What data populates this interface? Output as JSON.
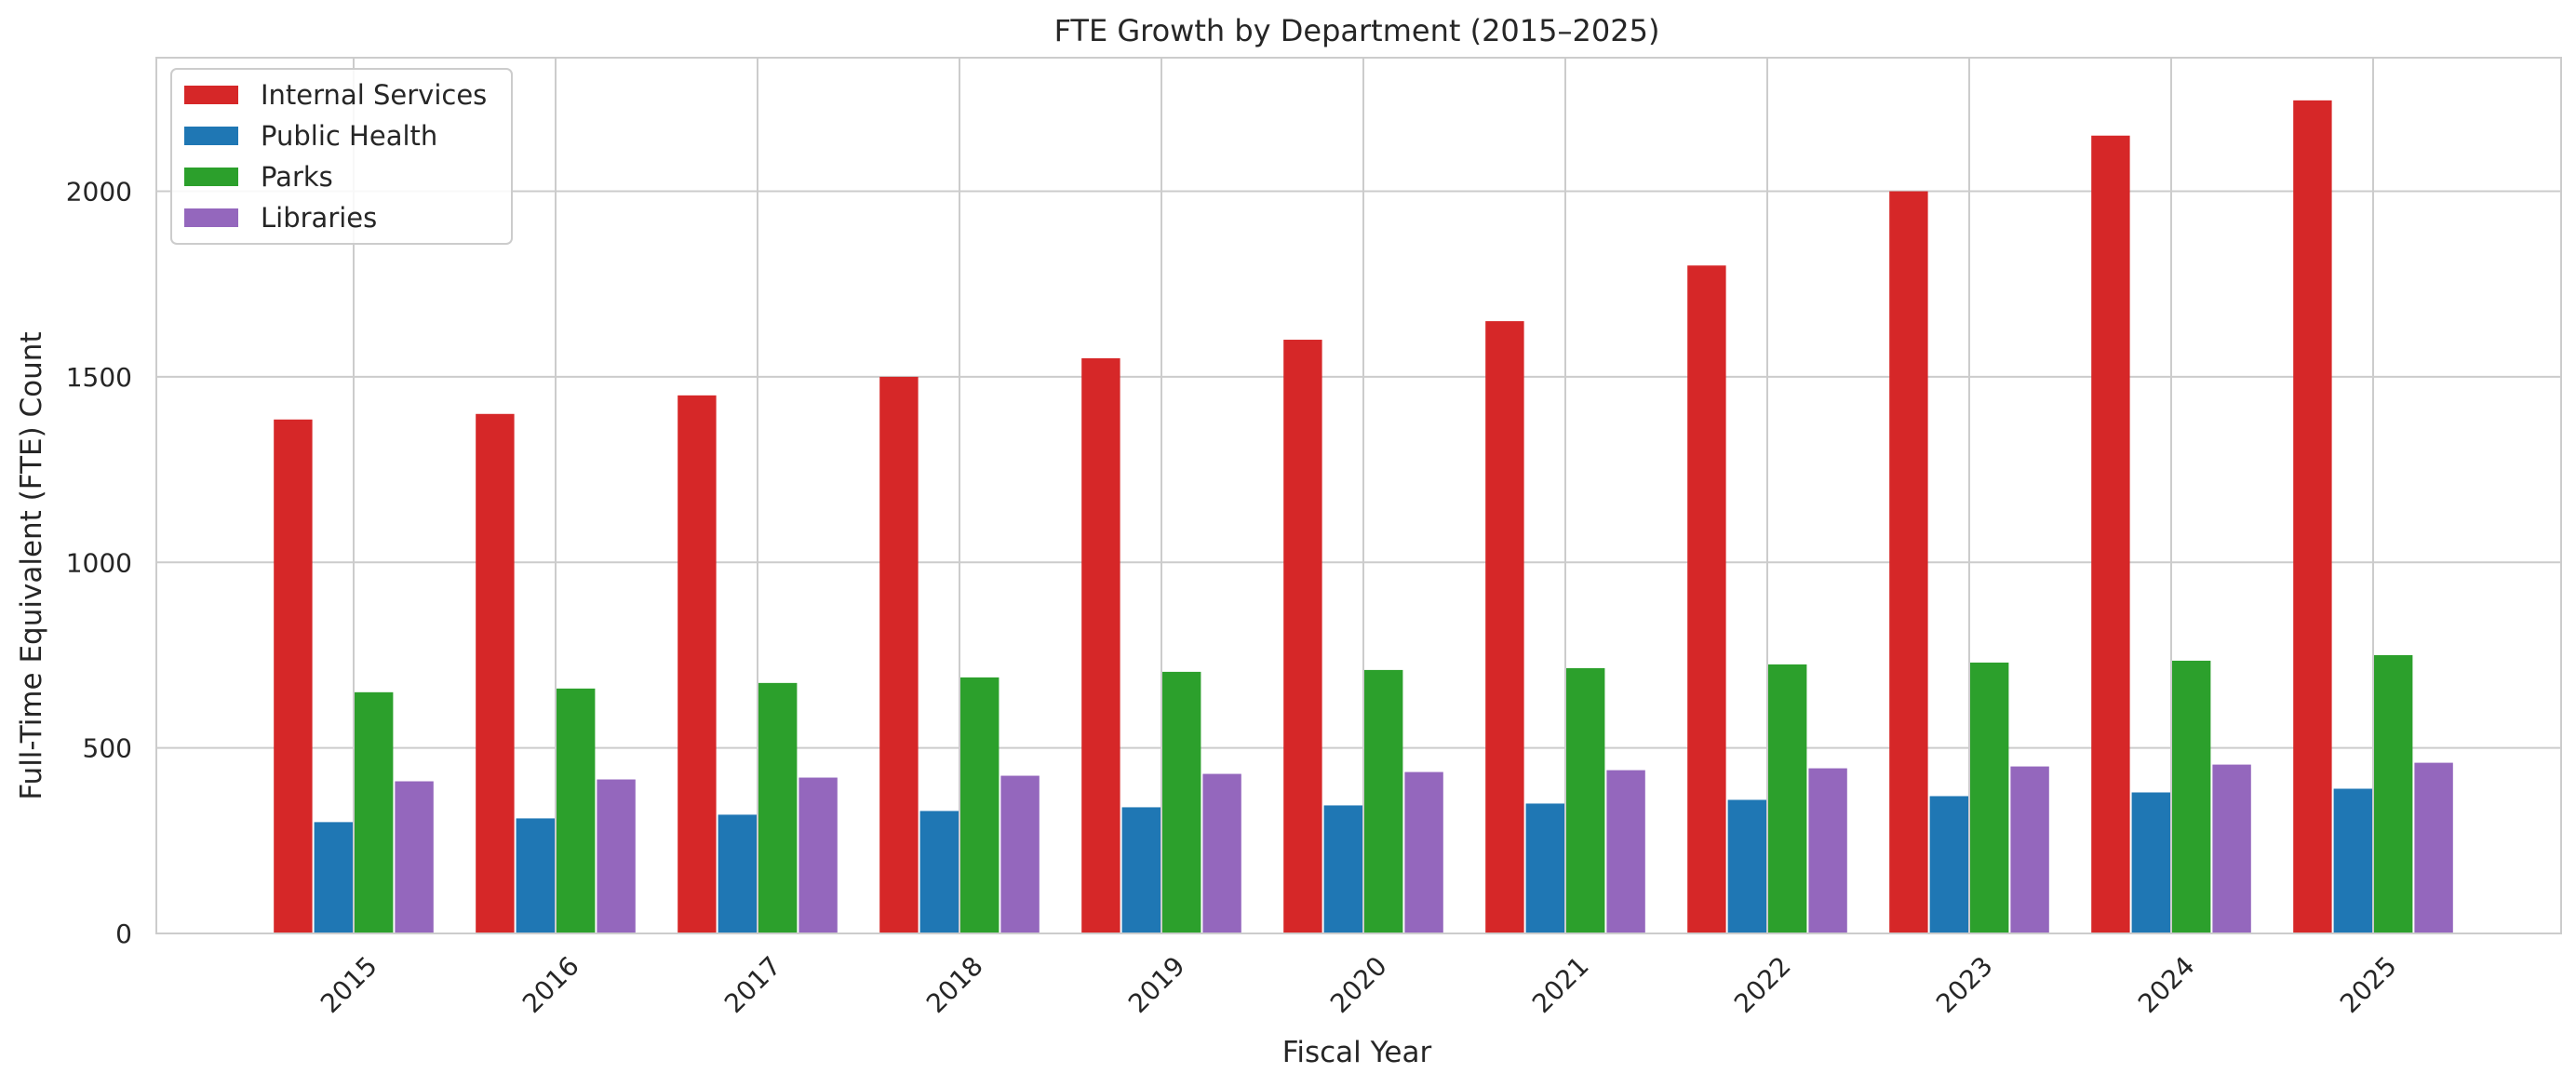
{
  "chart_data": {
    "type": "bar",
    "title": "FTE Growth by Department (2015–2025)",
    "xlabel": "Fiscal Year",
    "ylabel": "Full-Time Equivalent (FTE) Count",
    "categories": [
      "2015",
      "2016",
      "2017",
      "2018",
      "2019",
      "2020",
      "2021",
      "2022",
      "2023",
      "2024",
      "2025"
    ],
    "yticks": [
      0,
      500,
      1000,
      1500,
      2000
    ],
    "ylim": [
      0,
      2360
    ],
    "grid": true,
    "legend_position": "top-left",
    "series": [
      {
        "name": "Internal Services",
        "color": "#d62728",
        "values": [
          1385,
          1400,
          1450,
          1500,
          1550,
          1600,
          1650,
          1800,
          2000,
          2150,
          2245
        ]
      },
      {
        "name": "Public Health",
        "color": "#1f77b4",
        "values": [
          300,
          310,
          320,
          330,
          340,
          345,
          350,
          360,
          370,
          380,
          390
        ]
      },
      {
        "name": "Parks",
        "color": "#2ca02c",
        "values": [
          650,
          660,
          675,
          690,
          705,
          710,
          715,
          725,
          730,
          735,
          750
        ]
      },
      {
        "name": "Libraries",
        "color": "#9467bd",
        "values": [
          410,
          415,
          420,
          425,
          430,
          435,
          440,
          445,
          450,
          455,
          460
        ]
      }
    ]
  }
}
